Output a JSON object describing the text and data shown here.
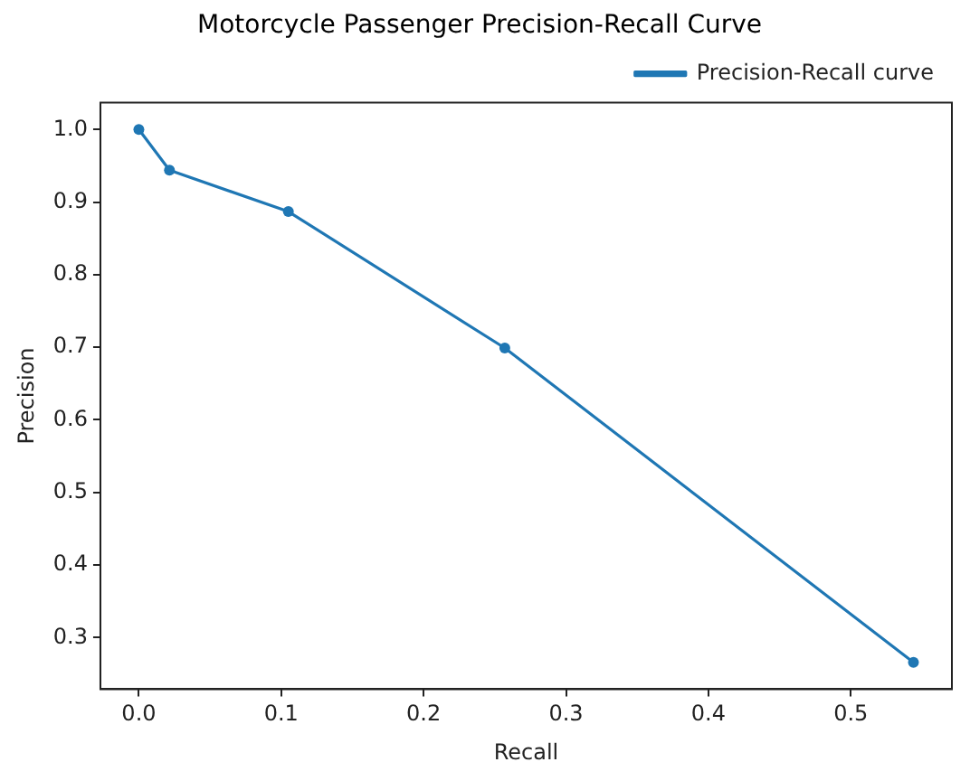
{
  "chart_data": {
    "type": "line",
    "title": "Motorcycle Passenger Precision-Recall Curve",
    "xlabel": "Recall",
    "ylabel": "Precision",
    "x": [
      0,
      0.0215,
      0.105,
      0.257,
      0.544
    ],
    "series": [
      {
        "name": "Precision-Recall curve",
        "color": "#1f77b4",
        "values": [
          1.0,
          0.944,
          0.887,
          0.699,
          0.266
        ]
      }
    ],
    "xlim": [
      -0.027,
      0.571
    ],
    "ylim": [
      0.229,
      1.037
    ],
    "xticks": [
      {
        "value": 0,
        "label": "0.0"
      },
      0.1,
      0.2,
      0.3,
      0.4,
      0.5
    ],
    "yticks": [
      0.3,
      0.4,
      0.5,
      0.6,
      0.7,
      0.8,
      0.9,
      {
        "value": 1,
        "label": "1.0"
      }
    ],
    "grid": false,
    "legend": "top right",
    "marker": "circle",
    "line_style": "solid"
  }
}
